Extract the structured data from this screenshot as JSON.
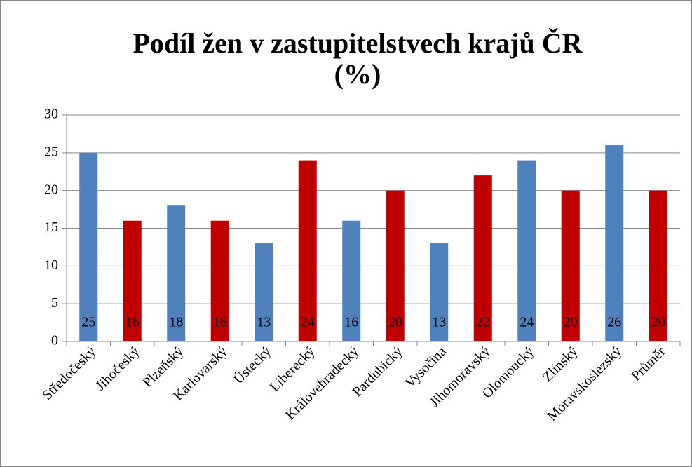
{
  "chart_data": {
    "type": "bar",
    "title": [
      "Podíl žen v zastupitelstvech krajů ČR",
      "(%)"
    ],
    "categories": [
      "Středočeský",
      "Jihočeský",
      "Plzeňský",
      "Karlovarský",
      "Ústecký",
      "Liberecký",
      "Královehradecký",
      "Pardubický",
      "Vysočina",
      "Jihomoravský",
      "Olomoucký",
      "Zlínský",
      "Moravskoslezský",
      "Průměr"
    ],
    "values": [
      25,
      16,
      18,
      16,
      13,
      24,
      16,
      20,
      13,
      22,
      24,
      20,
      26,
      20
    ],
    "colors": [
      "#4f81bd",
      "#c00000",
      "#4f81bd",
      "#c00000",
      "#4f81bd",
      "#c00000",
      "#4f81bd",
      "#c00000",
      "#4f81bd",
      "#c00000",
      "#4f81bd",
      "#c00000",
      "#4f81bd",
      "#c00000"
    ],
    "ylim": [
      0,
      30
    ],
    "yticks": [
      0,
      5,
      10,
      15,
      20,
      25,
      30
    ],
    "grid": true,
    "data_labels": true
  }
}
